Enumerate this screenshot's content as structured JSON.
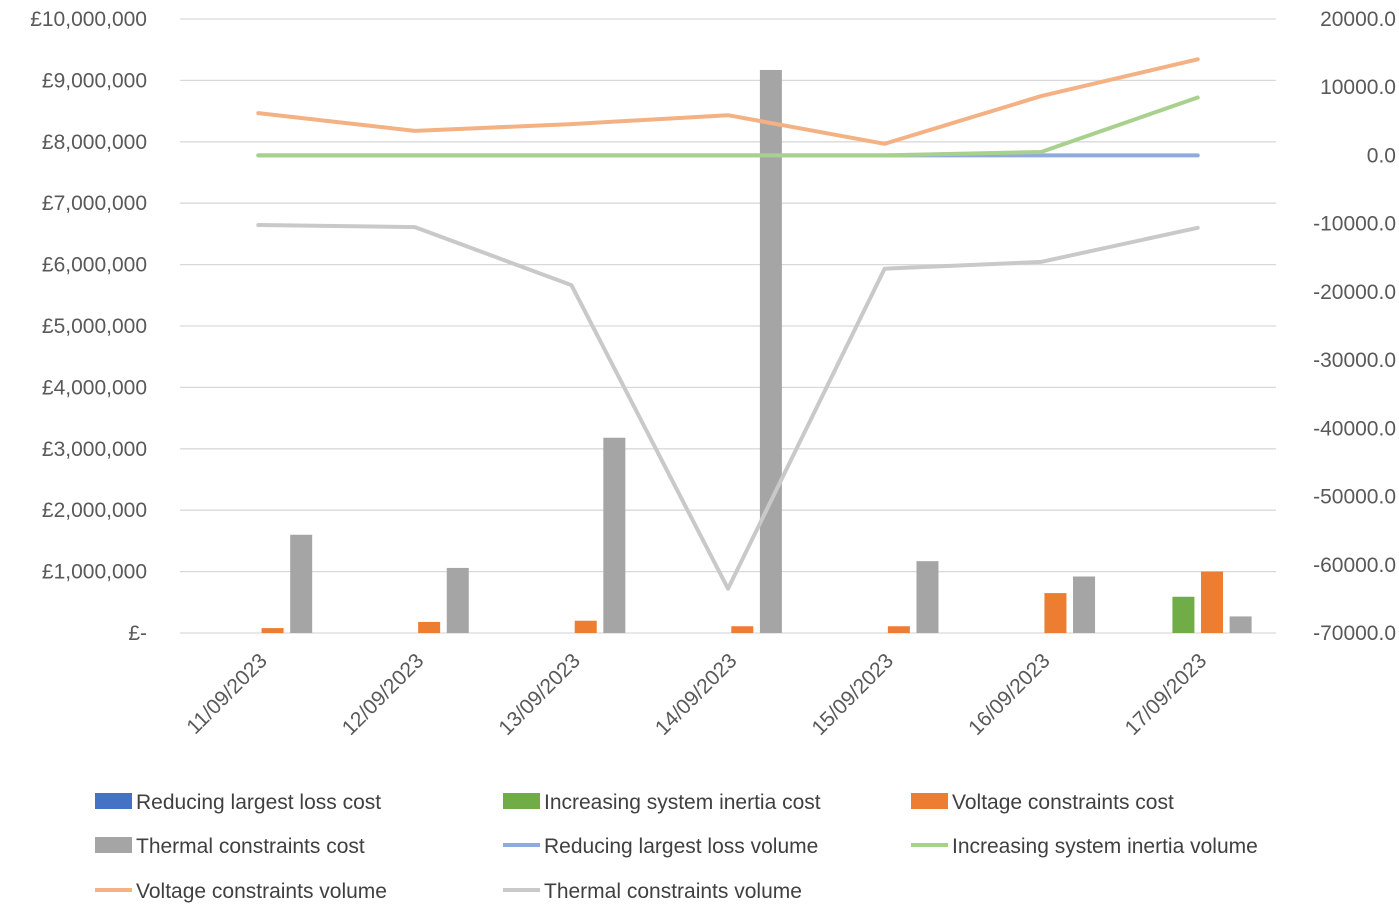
{
  "chart_data": {
    "type": "bar",
    "title": "",
    "xlabel": "",
    "ylabel": "",
    "categories": [
      "11/09/2023",
      "12/09/2023",
      "13/09/2023",
      "14/09/2023",
      "15/09/2023",
      "16/09/2023",
      "17/09/2023"
    ],
    "y_left": {
      "min": 0,
      "max": 10000000,
      "ticks": [
        0,
        1000000,
        2000000,
        3000000,
        4000000,
        5000000,
        6000000,
        7000000,
        8000000,
        9000000,
        10000000
      ],
      "tick_labels": [
        "£-",
        "£1,000,000",
        "£2,000,000",
        "£3,000,000",
        "£4,000,000",
        "£5,000,000",
        "£6,000,000",
        "£7,000,000",
        "£8,000,000",
        "£9,000,000",
        "£10,000,000"
      ]
    },
    "y_right": {
      "min": -70000,
      "max": 20000,
      "ticks": [
        -70000,
        -60000,
        -50000,
        -40000,
        -30000,
        -20000,
        -10000,
        0,
        10000,
        20000
      ],
      "tick_labels": [
        "-70000.0",
        "-60000.0",
        "-50000.0",
        "-40000.0",
        "-30000.0",
        "-20000.0",
        "-10000.0",
        "0.0",
        "10000.0",
        "20000.0"
      ]
    },
    "grid": true,
    "legend_position": "bottom",
    "bar_series": [
      {
        "name": "Reducing largest loss cost",
        "color": "#4472C4",
        "values": [
          0,
          0,
          0,
          0,
          0,
          0,
          0
        ]
      },
      {
        "name": "Increasing system inertia cost",
        "color": "#70AD47",
        "values": [
          0,
          0,
          0,
          0,
          0,
          0,
          590000
        ]
      },
      {
        "name": "Voltage constraints cost",
        "color": "#ED7D31",
        "values": [
          80000,
          180000,
          200000,
          110000,
          110000,
          650000,
          1000000
        ]
      },
      {
        "name": "Thermal constraints cost",
        "color": "#A5A5A5",
        "values": [
          1600000,
          1060000,
          3180000,
          9170000,
          1170000,
          920000,
          270000
        ]
      }
    ],
    "line_series": [
      {
        "name": "Reducing largest loss volume",
        "color": "#8FAADC",
        "values": [
          0,
          0,
          0,
          0,
          0,
          0,
          0
        ]
      },
      {
        "name": "Increasing system inertia volume",
        "color": "#A9D18E",
        "values": [
          0,
          0,
          0,
          0,
          0,
          500,
          8500
        ]
      },
      {
        "name": "Voltage constraints volume",
        "color": "#F4B183",
        "values": [
          6200,
          3600,
          4600,
          5900,
          1700,
          8700,
          14100
        ]
      },
      {
        "name": "Thermal constraints volume",
        "color": "#C9C9C9",
        "values": [
          -10200,
          -10500,
          -19000,
          -63500,
          -16600,
          -15600,
          -10600
        ]
      }
    ],
    "legend": [
      {
        "label": "Reducing largest loss cost",
        "kind": "bar",
        "color": "#4472C4"
      },
      {
        "label": "Increasing system inertia cost",
        "kind": "bar",
        "color": "#70AD47"
      },
      {
        "label": "Voltage constraints cost",
        "kind": "bar",
        "color": "#ED7D31"
      },
      {
        "label": "Thermal constraints cost",
        "kind": "bar",
        "color": "#A5A5A5"
      },
      {
        "label": "Reducing largest loss volume",
        "kind": "line",
        "color": "#8FAADC"
      },
      {
        "label": "Increasing system inertia volume",
        "kind": "line",
        "color": "#A9D18E"
      },
      {
        "label": "Voltage constraints volume",
        "kind": "line",
        "color": "#F4B183"
      },
      {
        "label": "Thermal constraints volume",
        "kind": "line",
        "color": "#C9C9C9"
      }
    ]
  }
}
